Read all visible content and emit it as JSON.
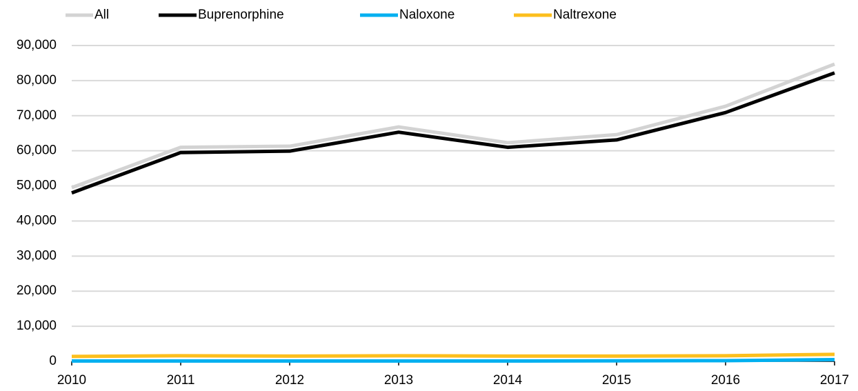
{
  "chart_data": {
    "type": "line",
    "categories": [
      "2010",
      "2011",
      "2012",
      "2013",
      "2014",
      "2015",
      "2016",
      "2017"
    ],
    "series": [
      {
        "name": "All",
        "color": "#d3d3d3",
        "values": [
          49500,
          61000,
          61300,
          66800,
          62300,
          64600,
          72700,
          84700
        ]
      },
      {
        "name": "Buprenorphine",
        "color": "#000000",
        "values": [
          48000,
          59500,
          59900,
          65300,
          61000,
          63100,
          70900,
          82200
        ]
      },
      {
        "name": "Naloxone",
        "color": "#00b0f0",
        "values": [
          100,
          100,
          100,
          100,
          100,
          150,
          200,
          500
        ]
      },
      {
        "name": "Naltrexone",
        "color": "#fcbf1e",
        "values": [
          1400,
          1600,
          1500,
          1600,
          1500,
          1500,
          1600,
          2000
        ]
      }
    ],
    "ylim": [
      0,
      90000
    ],
    "yticks": [
      0,
      {
        "value": 10000,
        "label": "10,000"
      },
      {
        "value": 20000,
        "label": "20,000"
      },
      {
        "value": 30000,
        "label": "30,000"
      },
      {
        "value": 40000,
        "label": "40,000"
      },
      {
        "value": 50000,
        "label": "50,000"
      },
      {
        "value": 60000,
        "label": "60,000"
      },
      {
        "value": 70000,
        "label": "70,000"
      },
      {
        "value": 80000,
        "label": "80,000"
      },
      {
        "value": 90000,
        "label": "90,000"
      }
    ],
    "grid": true,
    "legend": "top"
  }
}
